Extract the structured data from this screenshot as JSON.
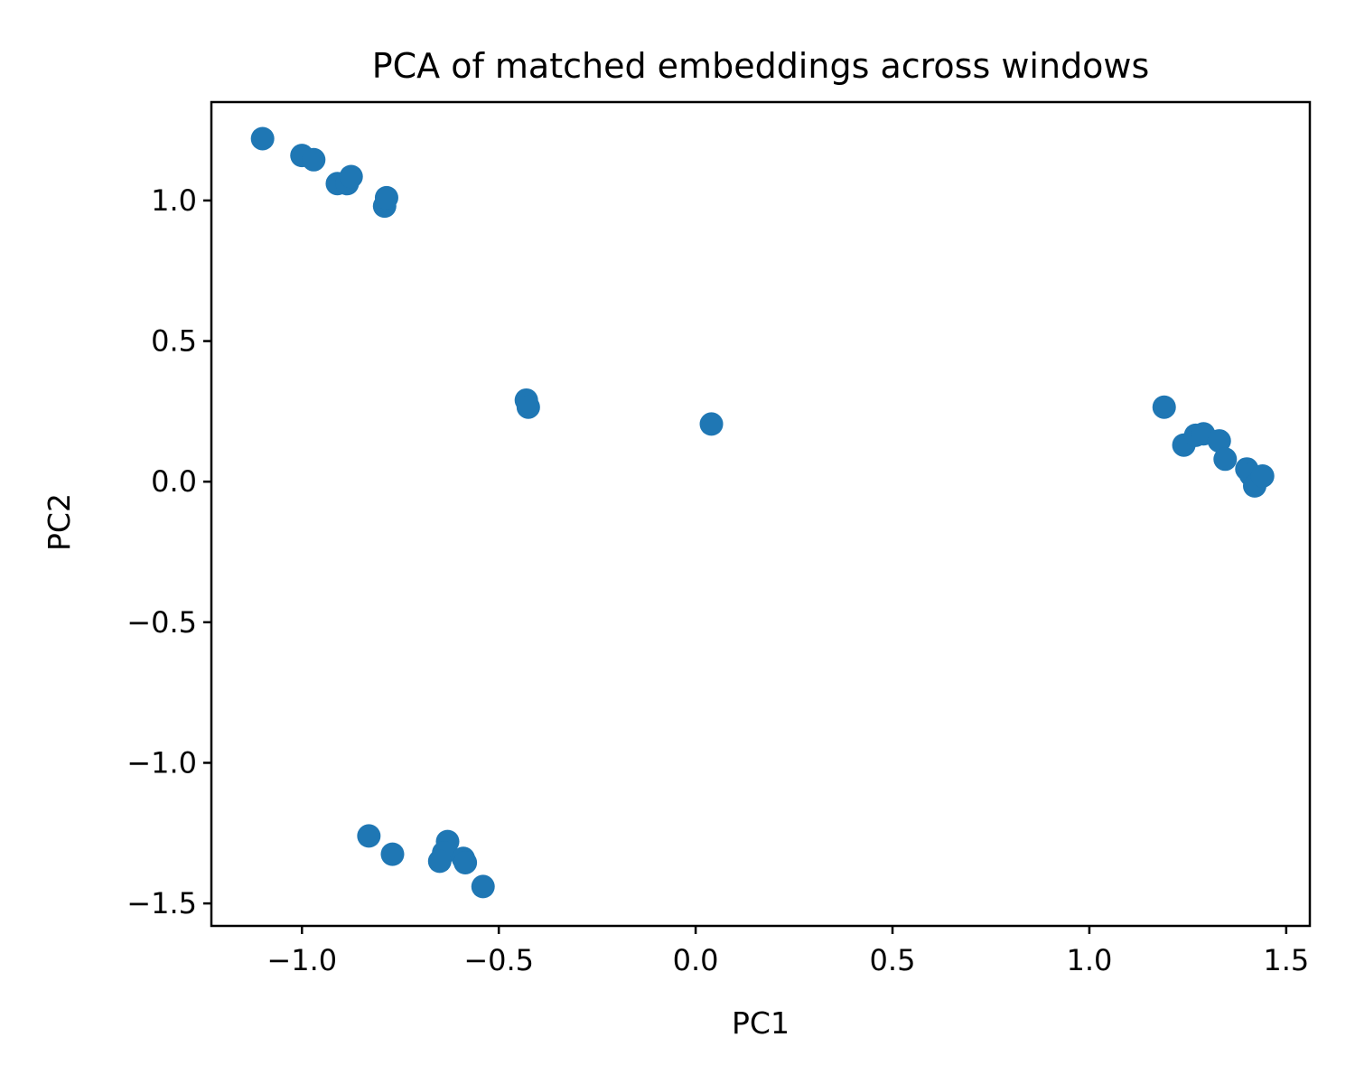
{
  "chart_data": {
    "type": "scatter",
    "title": "PCA of matched embeddings across windows",
    "xlabel": "PC1",
    "ylabel": "PC2",
    "xlim": [
      -1.23,
      1.56
    ],
    "ylim": [
      -1.58,
      1.35
    ],
    "xticks": [
      -1.0,
      -0.5,
      0.0,
      0.5,
      1.0,
      1.5
    ],
    "xtick_labels": [
      "−1.0",
      "−0.5",
      "0.0",
      "0.5",
      "1.0",
      "1.5"
    ],
    "yticks": [
      1.0,
      0.5,
      0.0,
      -0.5,
      -1.0,
      -1.5
    ],
    "ytick_labels": [
      "1.0",
      "0.5",
      "0.0",
      "−0.5",
      "−1.0",
      "−1.5"
    ],
    "grid": false,
    "marker_color": "#1f77b4",
    "points": [
      {
        "x": -1.1,
        "y": 1.22
      },
      {
        "x": -1.0,
        "y": 1.16
      },
      {
        "x": -0.97,
        "y": 1.145
      },
      {
        "x": -0.91,
        "y": 1.06
      },
      {
        "x": -0.885,
        "y": 1.06
      },
      {
        "x": -0.875,
        "y": 1.085
      },
      {
        "x": -0.79,
        "y": 0.98
      },
      {
        "x": -0.785,
        "y": 1.01
      },
      {
        "x": -0.43,
        "y": 0.29
      },
      {
        "x": -0.425,
        "y": 0.265
      },
      {
        "x": 0.04,
        "y": 0.205
      },
      {
        "x": 1.19,
        "y": 0.265
      },
      {
        "x": 1.24,
        "y": 0.13
      },
      {
        "x": 1.27,
        "y": 0.165
      },
      {
        "x": 1.29,
        "y": 0.17
      },
      {
        "x": 1.33,
        "y": 0.145
      },
      {
        "x": 1.345,
        "y": 0.08
      },
      {
        "x": 1.4,
        "y": 0.045
      },
      {
        "x": 1.41,
        "y": 0.025
      },
      {
        "x": 1.42,
        "y": -0.015
      },
      {
        "x": 1.44,
        "y": 0.02
      },
      {
        "x": -0.83,
        "y": -1.26
      },
      {
        "x": -0.77,
        "y": -1.325
      },
      {
        "x": -0.63,
        "y": -1.28
      },
      {
        "x": -0.64,
        "y": -1.32
      },
      {
        "x": -0.65,
        "y": -1.35
      },
      {
        "x": -0.59,
        "y": -1.34
      },
      {
        "x": -0.585,
        "y": -1.355
      },
      {
        "x": -0.54,
        "y": -1.44
      }
    ]
  }
}
